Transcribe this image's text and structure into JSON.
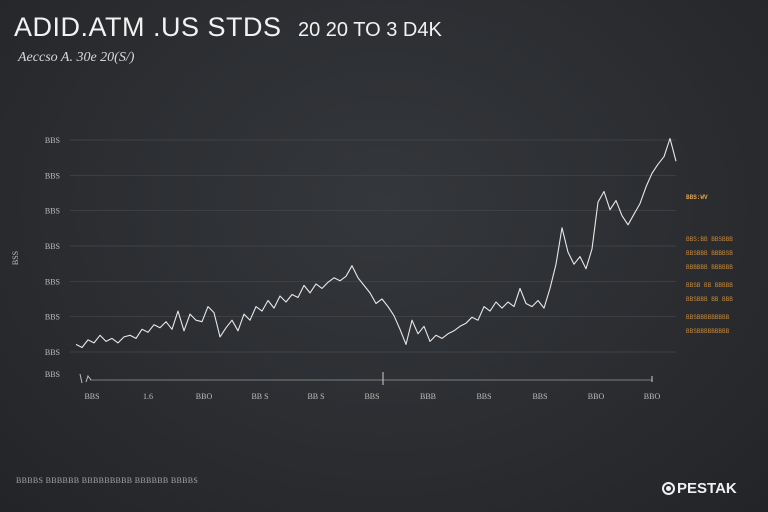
{
  "header": {
    "title": "ADID.ATM .US STDS",
    "range": "20 20 TO 3 D4K",
    "subtitle": "Aeccso A. 30e 20(S/)"
  },
  "legend": {
    "head": "BBS:WV",
    "entries": [
      "BBS:BB BBSBBB",
      "BBSBBB BBBBSB",
      "BBBBBB BBBBBB",
      "BBSB BB BBBBB",
      "BBSBBB BB BBB",
      "BBSBBBBBBBBB",
      "BBSBBBBBBBBB"
    ]
  },
  "footnote": "BBBBS BBBBBB BBBBBBBBB BBBBBB BBBBS",
  "brand": {
    "name": "PESTAK",
    "icon": "circle-logo-icon"
  },
  "colors": {
    "line": "#e8e8e8",
    "legend": "#c98a3a",
    "grid": "#45484d"
  },
  "chart_data": {
    "type": "line",
    "title": "ADID.ATM .US STDS",
    "ylabel": "BSS",
    "xlabel": "",
    "ytick_labels": [
      "BBS",
      "BBS",
      "BBS",
      "BBS",
      "BBS",
      "BBS",
      "BBS"
    ],
    "xtick_labels": [
      "BBS",
      "1.6",
      "BBO",
      "BB S",
      "BB S",
      "BBS",
      "BBB",
      "BBS",
      "BBS",
      "BBO",
      "BBO"
    ],
    "ylim": [
      0,
      7
    ],
    "xlim": [
      0,
      100
    ],
    "grid": true,
    "legend_position": "right",
    "series": [
      {
        "values": [
          [
            0,
            0.25
          ],
          [
            1,
            0.15
          ],
          [
            2,
            0.4
          ],
          [
            3,
            0.3
          ],
          [
            4,
            0.55
          ],
          [
            5,
            0.35
          ],
          [
            6,
            0.45
          ],
          [
            7,
            0.3
          ],
          [
            8,
            0.5
          ],
          [
            9,
            0.55
          ],
          [
            10,
            0.45
          ],
          [
            11,
            0.75
          ],
          [
            12,
            0.65
          ],
          [
            13,
            0.9
          ],
          [
            14,
            0.8
          ],
          [
            15,
            1.0
          ],
          [
            16,
            0.75
          ],
          [
            17,
            1.35
          ],
          [
            18,
            0.7
          ],
          [
            19,
            1.25
          ],
          [
            20,
            1.05
          ],
          [
            21,
            1.0
          ],
          [
            22,
            1.5
          ],
          [
            23,
            1.3
          ],
          [
            24,
            0.5
          ],
          [
            25,
            0.8
          ],
          [
            26,
            1.05
          ],
          [
            27,
            0.7
          ],
          [
            28,
            1.25
          ],
          [
            29,
            1.05
          ],
          [
            30,
            1.5
          ],
          [
            31,
            1.35
          ],
          [
            32,
            1.7
          ],
          [
            33,
            1.45
          ],
          [
            34,
            1.85
          ],
          [
            35,
            1.65
          ],
          [
            36,
            1.9
          ],
          [
            37,
            1.8
          ],
          [
            38,
            2.2
          ],
          [
            39,
            1.95
          ],
          [
            40,
            2.25
          ],
          [
            41,
            2.1
          ],
          [
            42,
            2.3
          ],
          [
            43,
            2.45
          ],
          [
            44,
            2.35
          ],
          [
            45,
            2.5
          ],
          [
            46,
            2.85
          ],
          [
            47,
            2.45
          ],
          [
            48,
            2.2
          ],
          [
            49,
            1.95
          ],
          [
            50,
            1.6
          ],
          [
            51,
            1.75
          ],
          [
            52,
            1.5
          ],
          [
            53,
            1.2
          ],
          [
            54,
            0.75
          ],
          [
            55,
            0.25
          ],
          [
            56,
            1.05
          ],
          [
            57,
            0.6
          ],
          [
            58,
            0.85
          ],
          [
            59,
            0.35
          ],
          [
            60,
            0.55
          ],
          [
            61,
            0.45
          ],
          [
            62,
            0.6
          ],
          [
            63,
            0.7
          ],
          [
            64,
            0.85
          ],
          [
            65,
            0.95
          ],
          [
            66,
            1.15
          ],
          [
            67,
            1.05
          ],
          [
            68,
            1.5
          ],
          [
            69,
            1.35
          ],
          [
            70,
            1.65
          ],
          [
            71,
            1.45
          ],
          [
            72,
            1.65
          ],
          [
            73,
            1.5
          ],
          [
            74,
            2.1
          ],
          [
            75,
            1.6
          ],
          [
            76,
            1.5
          ],
          [
            77,
            1.7
          ],
          [
            78,
            1.45
          ],
          [
            79,
            2.1
          ],
          [
            80,
            2.9
          ],
          [
            81,
            4.1
          ],
          [
            82,
            3.3
          ],
          [
            83,
            2.9
          ],
          [
            84,
            3.15
          ],
          [
            85,
            2.75
          ],
          [
            86,
            3.4
          ],
          [
            87,
            4.95
          ],
          [
            88,
            5.3
          ],
          [
            89,
            4.7
          ],
          [
            90,
            5.0
          ],
          [
            91,
            4.5
          ],
          [
            92,
            4.2
          ],
          [
            93,
            4.55
          ],
          [
            94,
            4.9
          ],
          [
            95,
            5.45
          ],
          [
            96,
            5.9
          ],
          [
            97,
            6.2
          ],
          [
            98,
            6.45
          ],
          [
            99,
            7.05
          ],
          [
            100,
            6.3
          ]
        ]
      }
    ]
  }
}
